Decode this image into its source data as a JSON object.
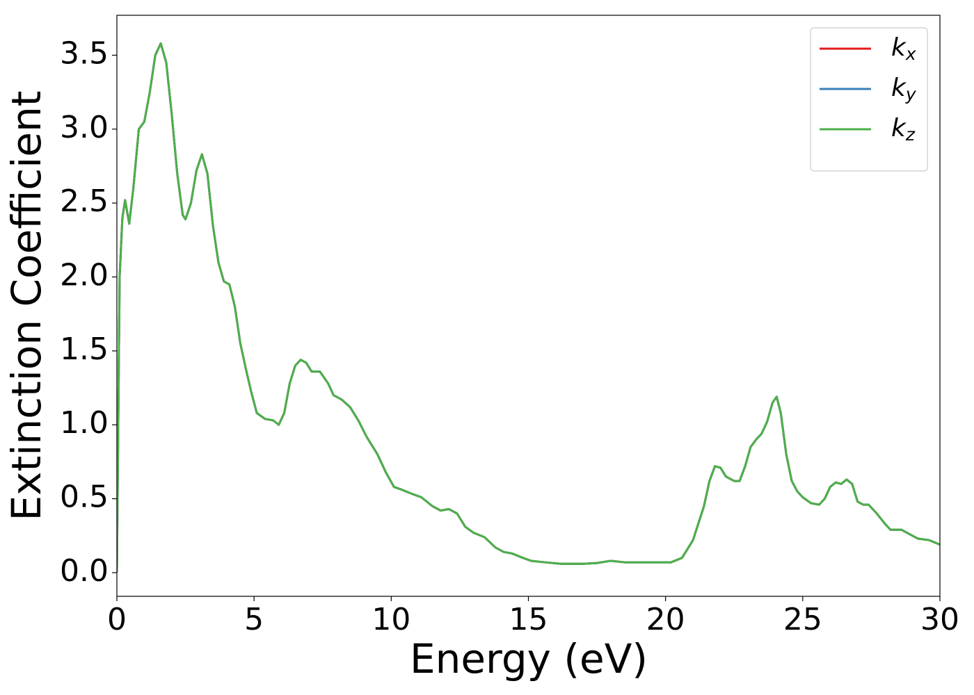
{
  "chart_data": {
    "type": "line",
    "xlabel": "Energy (eV)",
    "ylabel": "Extinction Coefficient",
    "x": [
      0,
      0.1,
      0.2,
      0.3,
      0.45,
      0.6,
      0.8,
      1.0,
      1.2,
      1.4,
      1.6,
      1.8,
      2.0,
      2.2,
      2.4,
      2.5,
      2.7,
      2.9,
      3.1,
      3.3,
      3.5,
      3.7,
      3.9,
      4.1,
      4.3,
      4.5,
      4.7,
      4.9,
      5.1,
      5.4,
      5.7,
      5.9,
      6.1,
      6.3,
      6.5,
      6.7,
      6.9,
      7.1,
      7.4,
      7.7,
      7.9,
      8.2,
      8.5,
      8.8,
      9.1,
      9.5,
      9.8,
      10.1,
      10.4,
      10.8,
      11.1,
      11.5,
      11.8,
      12.1,
      12.4,
      12.7,
      13.0,
      13.4,
      13.8,
      14.1,
      14.4,
      14.8,
      15.1,
      15.6,
      16.2,
      17.0,
      17.5,
      18.0,
      18.5,
      19.5,
      20.2,
      20.6,
      21.0,
      21.4,
      21.6,
      21.8,
      22.0,
      22.2,
      22.5,
      22.7,
      22.9,
      23.1,
      23.3,
      23.5,
      23.7,
      23.9,
      24.05,
      24.2,
      24.4,
      24.6,
      24.8,
      25.0,
      25.3,
      25.6,
      25.8,
      26.0,
      26.2,
      26.4,
      26.6,
      26.8,
      27.0,
      27.2,
      27.4,
      27.7,
      28.0,
      28.2,
      28.6,
      28.9,
      29.2,
      29.6,
      30.0
    ],
    "series": [
      {
        "name": "kx",
        "color": "#e41a1c",
        "values": [
          0.0,
          2.0,
          2.4,
          2.52,
          2.36,
          2.6,
          3.0,
          3.05,
          3.25,
          3.5,
          3.58,
          3.45,
          3.1,
          2.7,
          2.42,
          2.39,
          2.5,
          2.72,
          2.83,
          2.7,
          2.35,
          2.1,
          1.97,
          1.95,
          1.8,
          1.55,
          1.38,
          1.22,
          1.08,
          1.04,
          1.03,
          1.0,
          1.08,
          1.28,
          1.4,
          1.44,
          1.42,
          1.36,
          1.36,
          1.28,
          1.2,
          1.17,
          1.12,
          1.03,
          0.92,
          0.8,
          0.68,
          0.58,
          0.56,
          0.53,
          0.51,
          0.45,
          0.42,
          0.43,
          0.4,
          0.31,
          0.27,
          0.24,
          0.17,
          0.14,
          0.13,
          0.1,
          0.08,
          0.07,
          0.06,
          0.06,
          0.065,
          0.08,
          0.07,
          0.07,
          0.07,
          0.1,
          0.22,
          0.45,
          0.62,
          0.72,
          0.71,
          0.65,
          0.62,
          0.62,
          0.72,
          0.85,
          0.9,
          0.94,
          1.02,
          1.15,
          1.19,
          1.08,
          0.8,
          0.62,
          0.55,
          0.51,
          0.47,
          0.46,
          0.5,
          0.58,
          0.61,
          0.6,
          0.63,
          0.6,
          0.48,
          0.46,
          0.46,
          0.4,
          0.33,
          0.29,
          0.29,
          0.26,
          0.23,
          0.22,
          0.19
        ]
      },
      {
        "name": "ky",
        "color": "#377eb8",
        "values": [
          0.0,
          2.0,
          2.4,
          2.52,
          2.36,
          2.6,
          3.0,
          3.05,
          3.25,
          3.5,
          3.58,
          3.45,
          3.1,
          2.7,
          2.42,
          2.39,
          2.5,
          2.72,
          2.83,
          2.7,
          2.35,
          2.1,
          1.97,
          1.95,
          1.8,
          1.55,
          1.38,
          1.22,
          1.08,
          1.04,
          1.03,
          1.0,
          1.08,
          1.28,
          1.4,
          1.44,
          1.42,
          1.36,
          1.36,
          1.28,
          1.2,
          1.17,
          1.12,
          1.03,
          0.92,
          0.8,
          0.68,
          0.58,
          0.56,
          0.53,
          0.51,
          0.45,
          0.42,
          0.43,
          0.4,
          0.31,
          0.27,
          0.24,
          0.17,
          0.14,
          0.13,
          0.1,
          0.08,
          0.07,
          0.06,
          0.06,
          0.065,
          0.08,
          0.07,
          0.07,
          0.07,
          0.1,
          0.22,
          0.45,
          0.62,
          0.72,
          0.71,
          0.65,
          0.62,
          0.62,
          0.72,
          0.85,
          0.9,
          0.94,
          1.02,
          1.15,
          1.19,
          1.08,
          0.8,
          0.62,
          0.55,
          0.51,
          0.47,
          0.46,
          0.5,
          0.58,
          0.61,
          0.6,
          0.63,
          0.6,
          0.48,
          0.46,
          0.46,
          0.4,
          0.33,
          0.29,
          0.29,
          0.26,
          0.23,
          0.22,
          0.19
        ]
      },
      {
        "name": "kz",
        "color": "#4daf4a",
        "values": [
          0.0,
          2.0,
          2.4,
          2.52,
          2.36,
          2.6,
          3.0,
          3.05,
          3.25,
          3.5,
          3.58,
          3.45,
          3.1,
          2.7,
          2.42,
          2.39,
          2.5,
          2.72,
          2.83,
          2.7,
          2.35,
          2.1,
          1.97,
          1.95,
          1.8,
          1.55,
          1.38,
          1.22,
          1.08,
          1.04,
          1.03,
          1.0,
          1.08,
          1.28,
          1.4,
          1.44,
          1.42,
          1.36,
          1.36,
          1.28,
          1.2,
          1.17,
          1.12,
          1.03,
          0.92,
          0.8,
          0.68,
          0.58,
          0.56,
          0.53,
          0.51,
          0.45,
          0.42,
          0.43,
          0.4,
          0.31,
          0.27,
          0.24,
          0.17,
          0.14,
          0.13,
          0.1,
          0.08,
          0.07,
          0.06,
          0.06,
          0.065,
          0.08,
          0.07,
          0.07,
          0.07,
          0.1,
          0.22,
          0.45,
          0.62,
          0.72,
          0.71,
          0.65,
          0.62,
          0.62,
          0.72,
          0.85,
          0.9,
          0.94,
          1.02,
          1.15,
          1.19,
          1.08,
          0.8,
          0.62,
          0.55,
          0.51,
          0.47,
          0.46,
          0.5,
          0.58,
          0.61,
          0.6,
          0.63,
          0.6,
          0.48,
          0.46,
          0.46,
          0.4,
          0.33,
          0.29,
          0.29,
          0.26,
          0.23,
          0.22,
          0.19
        ]
      }
    ],
    "xlim": [
      0,
      30
    ],
    "xticks": [
      0,
      5,
      10,
      15,
      20,
      25,
      30
    ],
    "ylim": [
      -0.16,
      3.77
    ],
    "yticks": [
      {
        "value": 0,
        "label": "0.0"
      },
      {
        "value": 0.5,
        "label": "0.5"
      },
      {
        "value": 1,
        "label": "1.0"
      },
      {
        "value": 1.5,
        "label": "1.5"
      },
      {
        "value": 2,
        "label": "2.0"
      },
      {
        "value": 2.5,
        "label": "2.5"
      },
      {
        "value": 3,
        "label": "3.0"
      },
      {
        "value": 3.5,
        "label": "3.5"
      }
    ],
    "grid": false,
    "legend": "upper right"
  }
}
